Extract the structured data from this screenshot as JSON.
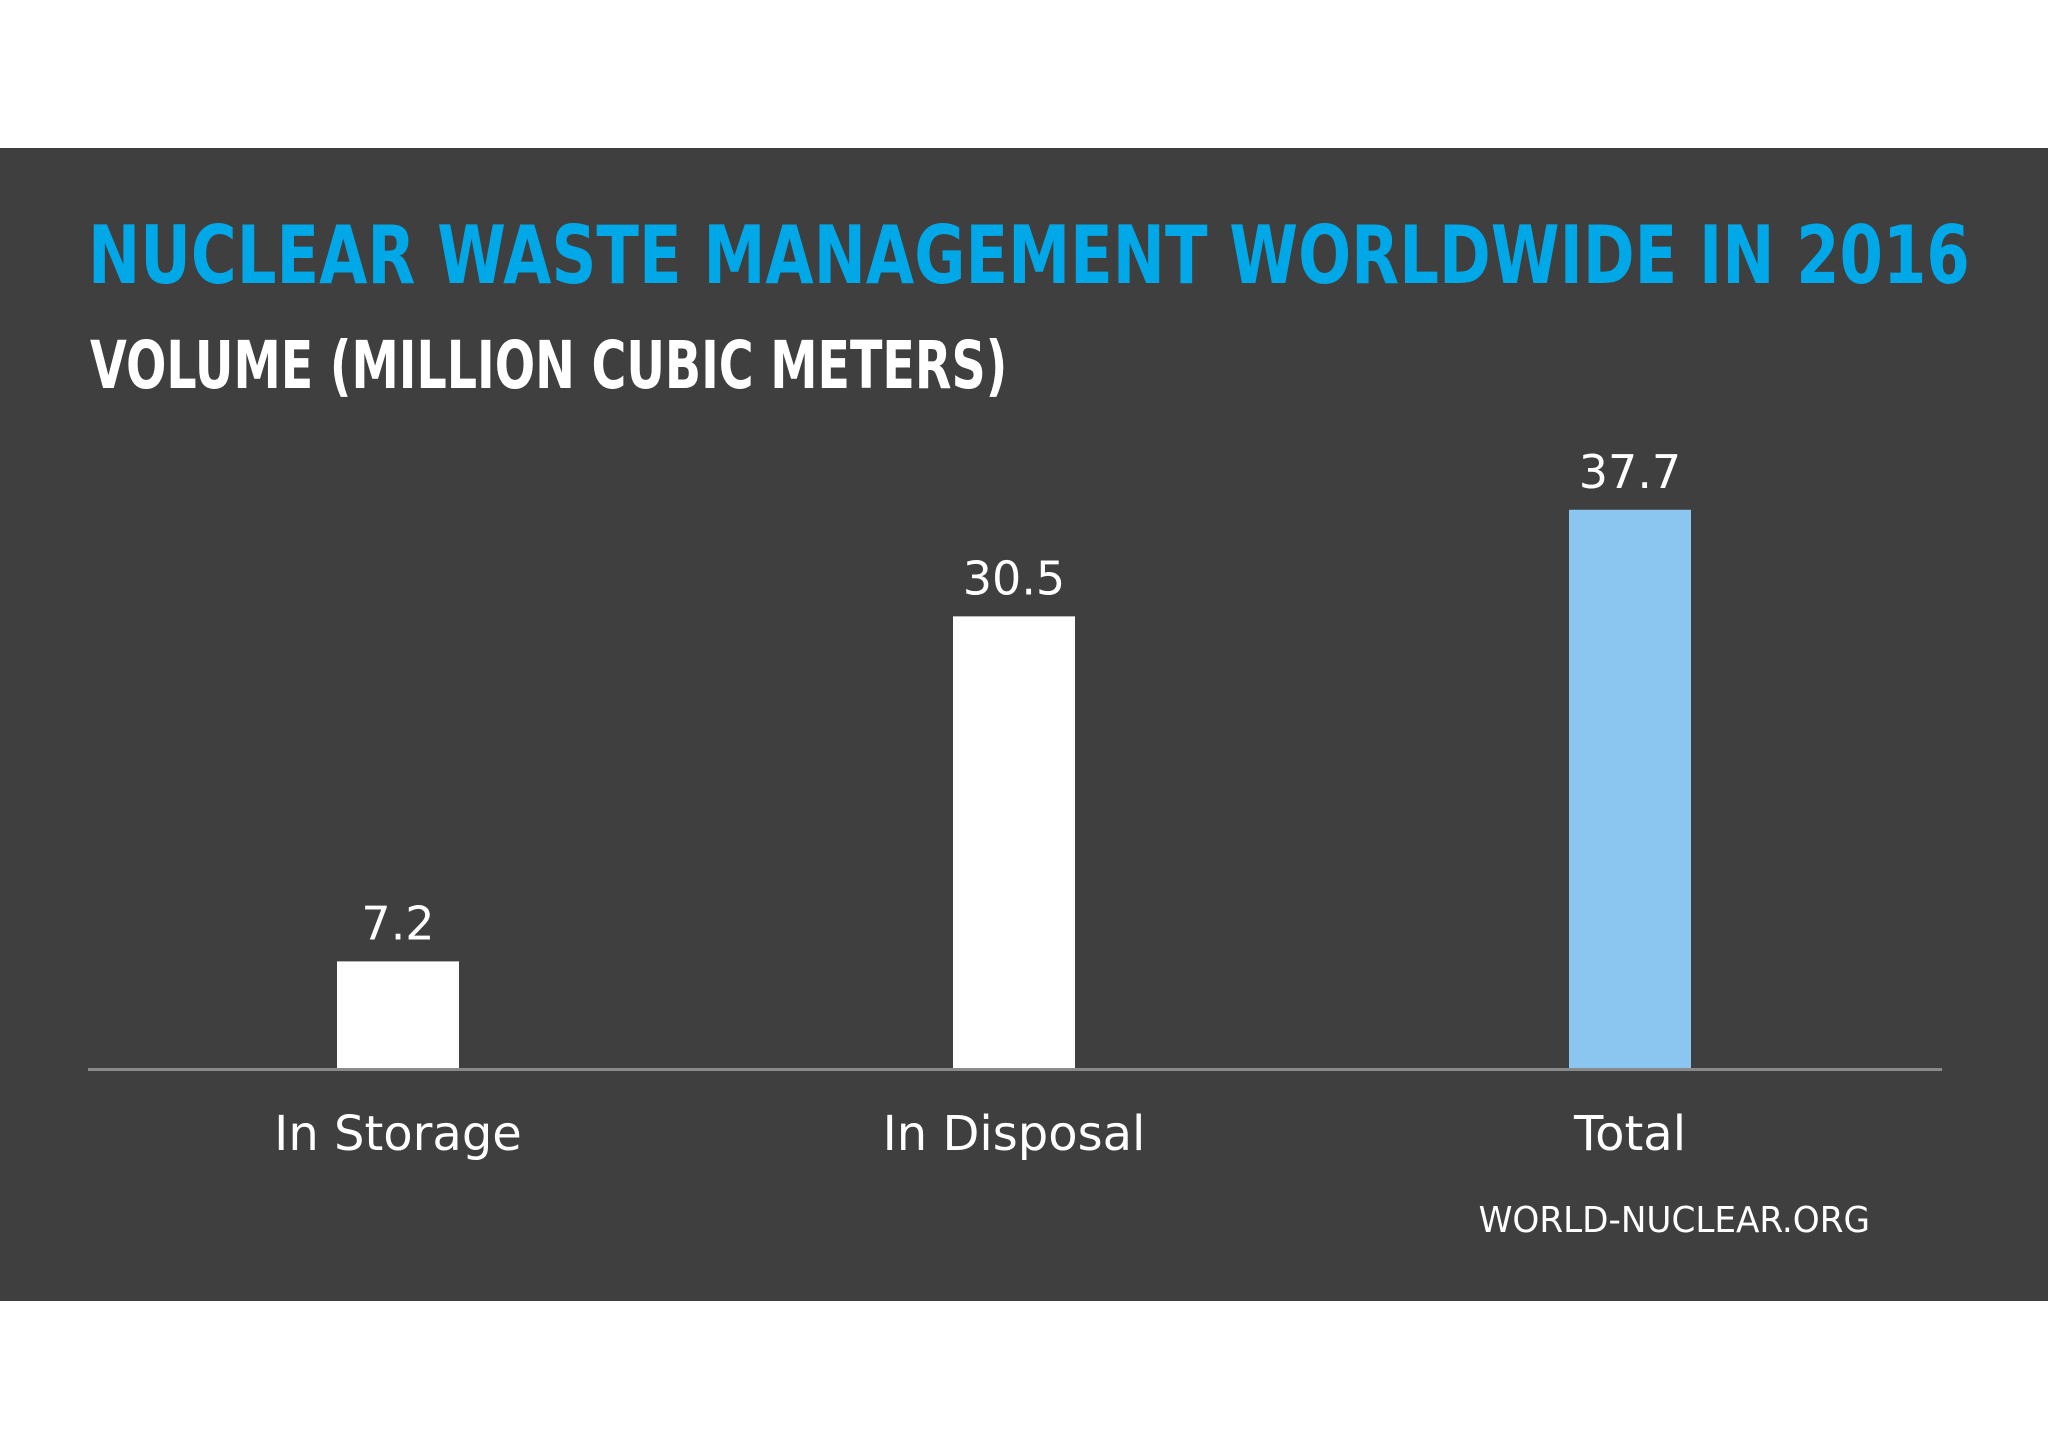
{
  "header": {
    "title": "NUCLEAR WASTE MANAGEMENT WORLDWIDE IN 2016",
    "subtitle": "VOLUME (MILLION CUBIC METERS)"
  },
  "footer": {
    "source": "WORLD-NUCLEAR.ORG"
  },
  "colors": {
    "background": "#3f3f3f",
    "title": "#00a8e8",
    "text": "#ffffff",
    "bar_default": "#ffffff",
    "bar_total": "#8ac6f0",
    "axis_line": "#8a8a8a"
  },
  "chart_data": {
    "type": "bar",
    "title": "NUCLEAR WASTE MANAGEMENT WORLDWIDE IN 2016",
    "subtitle": "VOLUME (MILLION CUBIC METERS)",
    "categories": [
      "In Storage",
      "In Disposal",
      "Total"
    ],
    "values": [
      7.2,
      30.5,
      37.7
    ],
    "data_labels": [
      "7.2",
      "30.5",
      "37.7"
    ],
    "highlight": [
      "default",
      "default",
      "total"
    ],
    "ylim": [
      0,
      52
    ],
    "grid": false,
    "legend": "none"
  }
}
